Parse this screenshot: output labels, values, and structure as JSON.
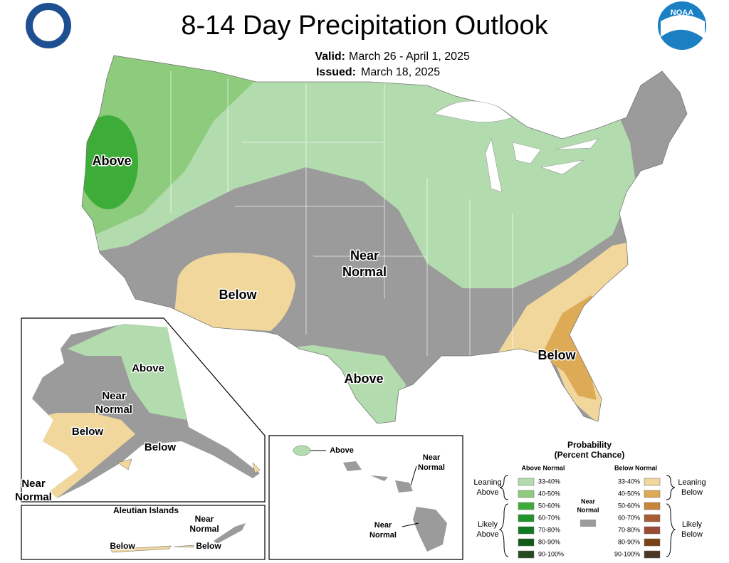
{
  "header": {
    "title": "8-14 Day Precipitation Outlook",
    "valid_label": "Valid:",
    "valid_text": "March 26 - April 1, 2025",
    "issued_label": "Issued:",
    "issued_text": "March 18, 2025"
  },
  "logos": {
    "noaa": "NOAA"
  },
  "conus_labels": [
    [
      "Above"
    ],
    [
      "Near",
      "Normal"
    ],
    [
      "Below"
    ],
    [
      "Above"
    ],
    [
      "Below"
    ]
  ],
  "alaska_labels": [
    [
      "Above"
    ],
    [
      "Near",
      "Normal"
    ],
    [
      "Below"
    ],
    [
      "Below"
    ],
    [
      "Near",
      "Normal"
    ]
  ],
  "aleutian": {
    "title": "Aleutian Islands",
    "labels": [
      [
        "Near",
        "Normal"
      ],
      [
        "Below"
      ],
      [
        "Below"
      ]
    ]
  },
  "hawaii_labels": [
    [
      "Above"
    ],
    [
      "Near",
      "Normal"
    ],
    [
      "Near",
      "Normal"
    ]
  ],
  "legend": {
    "title": [
      "Probability",
      "(Percent Chance)"
    ],
    "above_header": "Above Normal",
    "below_header": "Below Normal",
    "near": {
      "lines": [
        "Near",
        "Normal"
      ],
      "color": "#9b9b9b"
    },
    "above": [
      {
        "label": "33-40%",
        "color": "#b3dcae"
      },
      {
        "label": "40-50%",
        "color": "#8dcb7d"
      },
      {
        "label": "50-60%",
        "color": "#3eac39"
      },
      {
        "label": "60-70%",
        "color": "#20942c"
      },
      {
        "label": "70-80%",
        "color": "#0f7a21"
      },
      {
        "label": "80-90%",
        "color": "#105b1a"
      },
      {
        "label": "90-100%",
        "color": "#284a22"
      }
    ],
    "below": [
      {
        "label": "33-40%",
        "color": "#f2d79c"
      },
      {
        "label": "40-50%",
        "color": "#ddaa55"
      },
      {
        "label": "50-60%",
        "color": "#c8853c"
      },
      {
        "label": "60-70%",
        "color": "#a85c33"
      },
      {
        "label": "70-80%",
        "color": "#9a4a35"
      },
      {
        "label": "80-90%",
        "color": "#7a4412"
      },
      {
        "label": "90-100%",
        "color": "#4a3824"
      }
    ],
    "groups": [
      [
        "Leaning",
        "Above"
      ],
      [
        "Likely",
        "Above"
      ],
      [
        "Leaning",
        "Below"
      ],
      [
        "Likely",
        "Below"
      ]
    ]
  }
}
